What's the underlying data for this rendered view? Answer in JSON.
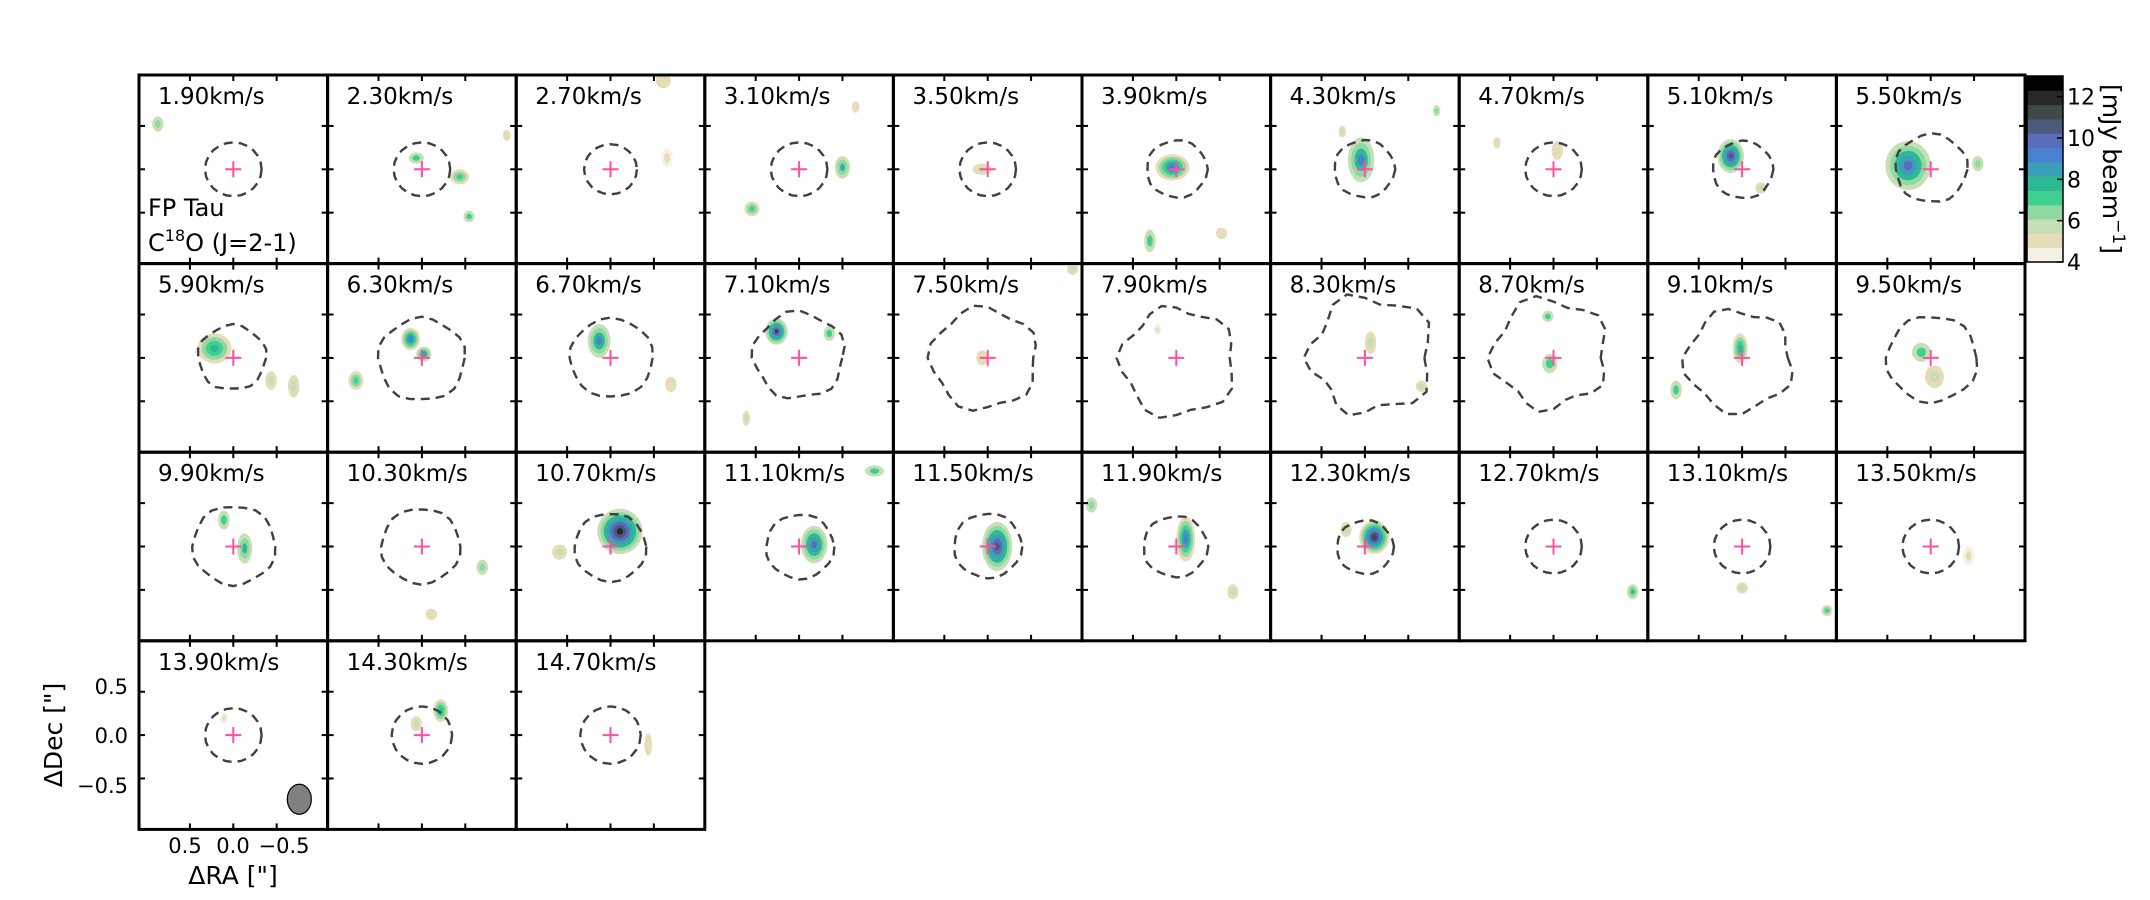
{
  "figure": {
    "source": "FP Tau",
    "line_prefix": "C",
    "line_isotope": "18",
    "line_suffix": "O (J=2-1)"
  },
  "axes": {
    "x_label": "ΔRA [\"]",
    "y_label": "ΔDec [\"]",
    "x_ticks": [
      "0.5",
      "0.0",
      "−0.5"
    ],
    "y_ticks": [
      "0.5",
      "0.0",
      "−0.5"
    ]
  },
  "colorbar": {
    "label": "[mJy beam",
    "label_exponent": "−1",
    "label_close": "]",
    "ticks": [
      "4",
      "6",
      "8",
      "10",
      "12"
    ],
    "range": [
      4,
      13
    ],
    "colors": [
      "#f5f1e4",
      "#e6dcb8",
      "#c4e0b4",
      "#8fd8a4",
      "#3fcf8e",
      "#2fb894",
      "#3aa0b8",
      "#4a80d0",
      "#5c6cbc",
      "#4a5a7a",
      "#404848",
      "#282828",
      "#000000"
    ]
  },
  "chart_data": {
    "type": "heatmap",
    "description_units": "km/s",
    "panels": [
      {
        "label": "1.90km/s",
        "velocity": 1.9
      },
      {
        "label": "2.30km/s",
        "velocity": 2.3
      },
      {
        "label": "2.70km/s",
        "velocity": 2.7
      },
      {
        "label": "3.10km/s",
        "velocity": 3.1
      },
      {
        "label": "3.50km/s",
        "velocity": 3.5
      },
      {
        "label": "3.90km/s",
        "velocity": 3.9
      },
      {
        "label": "4.30km/s",
        "velocity": 4.3
      },
      {
        "label": "4.70km/s",
        "velocity": 4.7
      },
      {
        "label": "5.10km/s",
        "velocity": 5.1
      },
      {
        "label": "5.50km/s",
        "velocity": 5.5
      },
      {
        "label": "5.90km/s",
        "velocity": 5.9
      },
      {
        "label": "6.30km/s",
        "velocity": 6.3
      },
      {
        "label": "6.70km/s",
        "velocity": 6.7
      },
      {
        "label": "7.10km/s",
        "velocity": 7.1
      },
      {
        "label": "7.50km/s",
        "velocity": 7.5
      },
      {
        "label": "7.90km/s",
        "velocity": 7.9
      },
      {
        "label": "8.30km/s",
        "velocity": 8.3
      },
      {
        "label": "8.70km/s",
        "velocity": 8.7
      },
      {
        "label": "9.10km/s",
        "velocity": 9.1
      },
      {
        "label": "9.50km/s",
        "velocity": 9.5
      },
      {
        "label": "9.90km/s",
        "velocity": 9.9
      },
      {
        "label": "10.30km/s",
        "velocity": 10.3
      },
      {
        "label": "10.70km/s",
        "velocity": 10.7
      },
      {
        "label": "11.10km/s",
        "velocity": 11.1
      },
      {
        "label": "11.50km/s",
        "velocity": 11.5
      },
      {
        "label": "11.90km/s",
        "velocity": 11.9
      },
      {
        "label": "12.30km/s",
        "velocity": 12.3
      },
      {
        "label": "12.70km/s",
        "velocity": 12.7
      },
      {
        "label": "13.10km/s",
        "velocity": 13.1
      },
      {
        "label": "13.50km/s",
        "velocity": 13.5
      },
      {
        "label": "13.90km/s",
        "velocity": 13.9
      },
      {
        "label": "14.30km/s",
        "velocity": 14.3
      },
      {
        "label": "14.70km/s",
        "velocity": 14.7
      }
    ]
  },
  "style": {
    "marker_color": "#ff4fa0",
    "contour_color": "#404040",
    "beam_fill": "#808080"
  }
}
